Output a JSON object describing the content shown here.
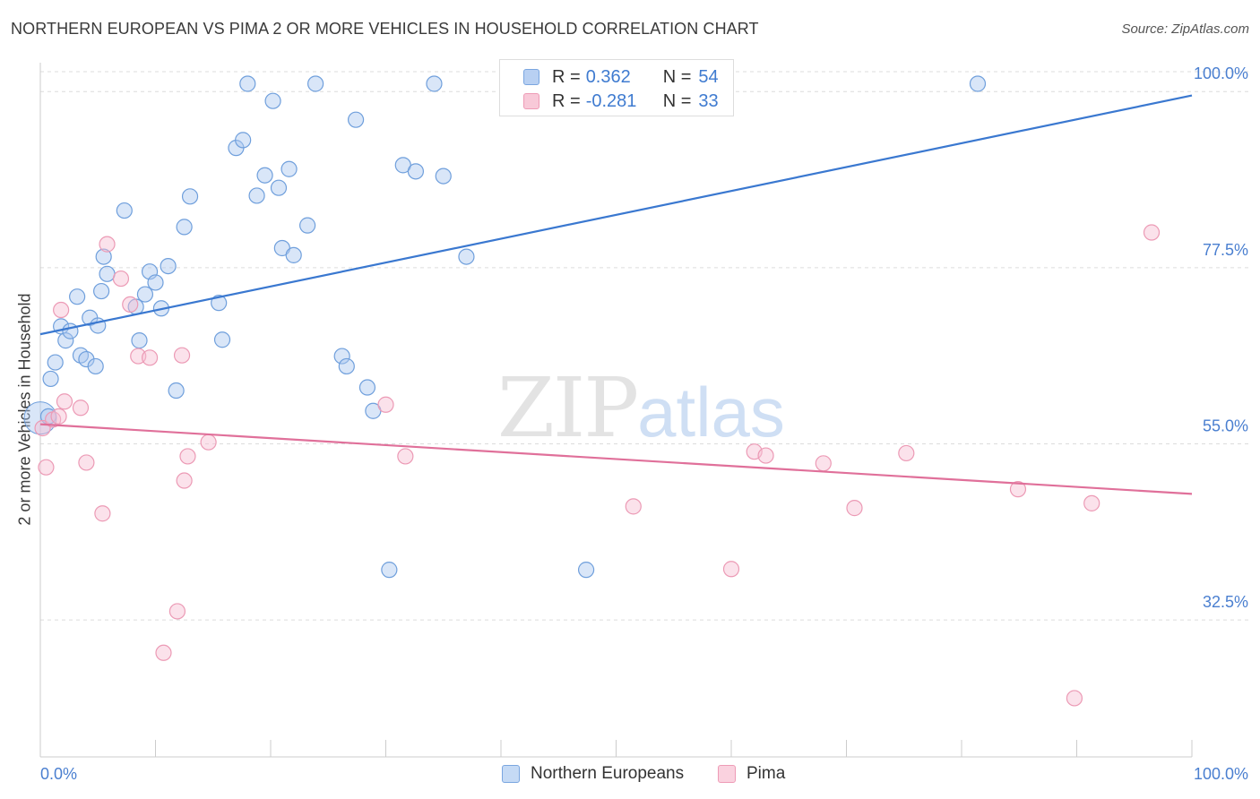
{
  "title": "NORTHERN EUROPEAN VS PIMA 2 OR MORE VEHICLES IN HOUSEHOLD CORRELATION CHART",
  "source": "Source: ZipAtlas.com",
  "watermark": {
    "zip": "ZIP",
    "atlas": "atlas"
  },
  "legend_top": [
    {
      "r_label": "R =",
      "r_value": "0.362",
      "n_label": "N =",
      "n_value": "54",
      "color": "#b8d0f2",
      "border": "#7aa6e0"
    },
    {
      "r_label": "R =",
      "r_value": "-0.281",
      "n_label": "N =",
      "n_value": "33",
      "color": "#f8c9d8",
      "border": "#ee9bb6"
    }
  ],
  "legend_bottom": [
    {
      "name": "Northern Europeans",
      "color": "#c5daf5",
      "border": "#7aa6e0"
    },
    {
      "name": "Pima",
      "color": "#fad2df",
      "border": "#ee9bb6"
    }
  ],
  "colors": {
    "blue_line": "#3a78d0",
    "pink_line": "#e0709a",
    "blue_fill": "rgba(170,200,240,0.45)",
    "blue_stroke": "#6f9fdc",
    "pink_fill": "rgba(247,190,210,0.45)",
    "pink_stroke": "#ec9ab5",
    "tick_label": "#4a7fd0",
    "grid": "#dcdcdc"
  },
  "chart_data": {
    "type": "scatter",
    "title": "NORTHERN EUROPEAN VS PIMA 2 OR MORE VEHICLES IN HOUSEHOLD CORRELATION CHART",
    "xlabel": "",
    "ylabel": "2 or more Vehicles in Household",
    "xlim": [
      0,
      100
    ],
    "ylim": [
      15,
      103
    ],
    "x_tick_labels": [
      "0.0%",
      "100.0%"
    ],
    "y_ticks": [
      32.5,
      55.0,
      77.5,
      100.0
    ],
    "y_tick_labels": [
      "32.5%",
      "55.0%",
      "77.5%",
      "100.0%"
    ],
    "grid": true,
    "series": [
      {
        "name": "Northern Europeans",
        "points": [
          [
            0.7,
            58.5
          ],
          [
            0.9,
            63.3
          ],
          [
            1.3,
            65.4
          ],
          [
            1.8,
            70.0
          ],
          [
            2.2,
            68.2
          ],
          [
            2.6,
            69.4
          ],
          [
            3.2,
            73.8
          ],
          [
            3.5,
            66.3
          ],
          [
            4.0,
            65.8
          ],
          [
            4.3,
            71.1
          ],
          [
            4.8,
            64.9
          ],
          [
            5.0,
            70.1
          ],
          [
            5.3,
            74.5
          ],
          [
            5.5,
            78.9
          ],
          [
            5.8,
            76.7
          ],
          [
            7.3,
            84.8
          ],
          [
            8.3,
            72.5
          ],
          [
            8.6,
            68.2
          ],
          [
            9.1,
            74.1
          ],
          [
            9.5,
            77.0
          ],
          [
            10.0,
            75.6
          ],
          [
            10.5,
            72.3
          ],
          [
            11.1,
            77.7
          ],
          [
            11.8,
            61.8
          ],
          [
            12.5,
            82.7
          ],
          [
            13.0,
            86.6
          ],
          [
            15.5,
            73.0
          ],
          [
            15.8,
            68.3
          ],
          [
            17.0,
            92.8
          ],
          [
            17.6,
            93.8
          ],
          [
            18.0,
            101.0
          ],
          [
            18.8,
            86.7
          ],
          [
            19.5,
            89.3
          ],
          [
            20.2,
            98.8
          ],
          [
            20.7,
            87.7
          ],
          [
            21.0,
            80.0
          ],
          [
            21.6,
            90.1
          ],
          [
            22.0,
            79.1
          ],
          [
            23.2,
            82.9
          ],
          [
            23.9,
            101.0
          ],
          [
            26.2,
            66.2
          ],
          [
            26.6,
            64.9
          ],
          [
            27.4,
            96.4
          ],
          [
            28.4,
            62.2
          ],
          [
            28.9,
            59.2
          ],
          [
            30.3,
            38.9
          ],
          [
            31.5,
            90.6
          ],
          [
            32.6,
            89.8
          ],
          [
            34.2,
            101.0
          ],
          [
            35.0,
            89.2
          ],
          [
            37.0,
            78.9
          ],
          [
            40.6,
            101.0
          ],
          [
            47.4,
            38.9
          ],
          [
            81.4,
            101.0
          ]
        ]
      },
      {
        "name": "Pima",
        "points": [
          [
            0.2,
            57.0
          ],
          [
            0.5,
            52.0
          ],
          [
            1.1,
            58.1
          ],
          [
            1.6,
            58.5
          ],
          [
            1.8,
            72.1
          ],
          [
            2.1,
            60.4
          ],
          [
            3.5,
            59.6
          ],
          [
            4.0,
            52.6
          ],
          [
            5.4,
            46.1
          ],
          [
            5.8,
            80.5
          ],
          [
            7.0,
            76.1
          ],
          [
            7.8,
            72.8
          ],
          [
            8.5,
            66.2
          ],
          [
            9.5,
            66.0
          ],
          [
            10.7,
            28.3
          ],
          [
            11.9,
            33.6
          ],
          [
            12.3,
            66.3
          ],
          [
            12.5,
            50.3
          ],
          [
            12.8,
            53.4
          ],
          [
            14.6,
            55.2
          ],
          [
            30.0,
            60.0
          ],
          [
            31.7,
            53.4
          ],
          [
            51.5,
            47.0
          ],
          [
            60.0,
            39.0
          ],
          [
            62.0,
            54.0
          ],
          [
            63.0,
            53.5
          ],
          [
            68.0,
            52.5
          ],
          [
            70.7,
            46.8
          ],
          [
            75.2,
            53.8
          ],
          [
            84.9,
            49.2
          ],
          [
            89.8,
            22.5
          ],
          [
            91.3,
            47.4
          ],
          [
            96.5,
            82.0
          ]
        ]
      }
    ],
    "trendlines": [
      {
        "series": "Northern Europeans",
        "x": [
          0,
          100
        ],
        "y": [
          69.0,
          99.5
        ]
      },
      {
        "series": "Pima",
        "x": [
          0,
          100
        ],
        "y": [
          57.5,
          48.6
        ]
      }
    ],
    "legend": [
      {
        "series": "Northern Europeans",
        "R": "0.362",
        "N": "54"
      },
      {
        "series": "Pima",
        "R": "-0.281",
        "N": "33"
      }
    ]
  }
}
